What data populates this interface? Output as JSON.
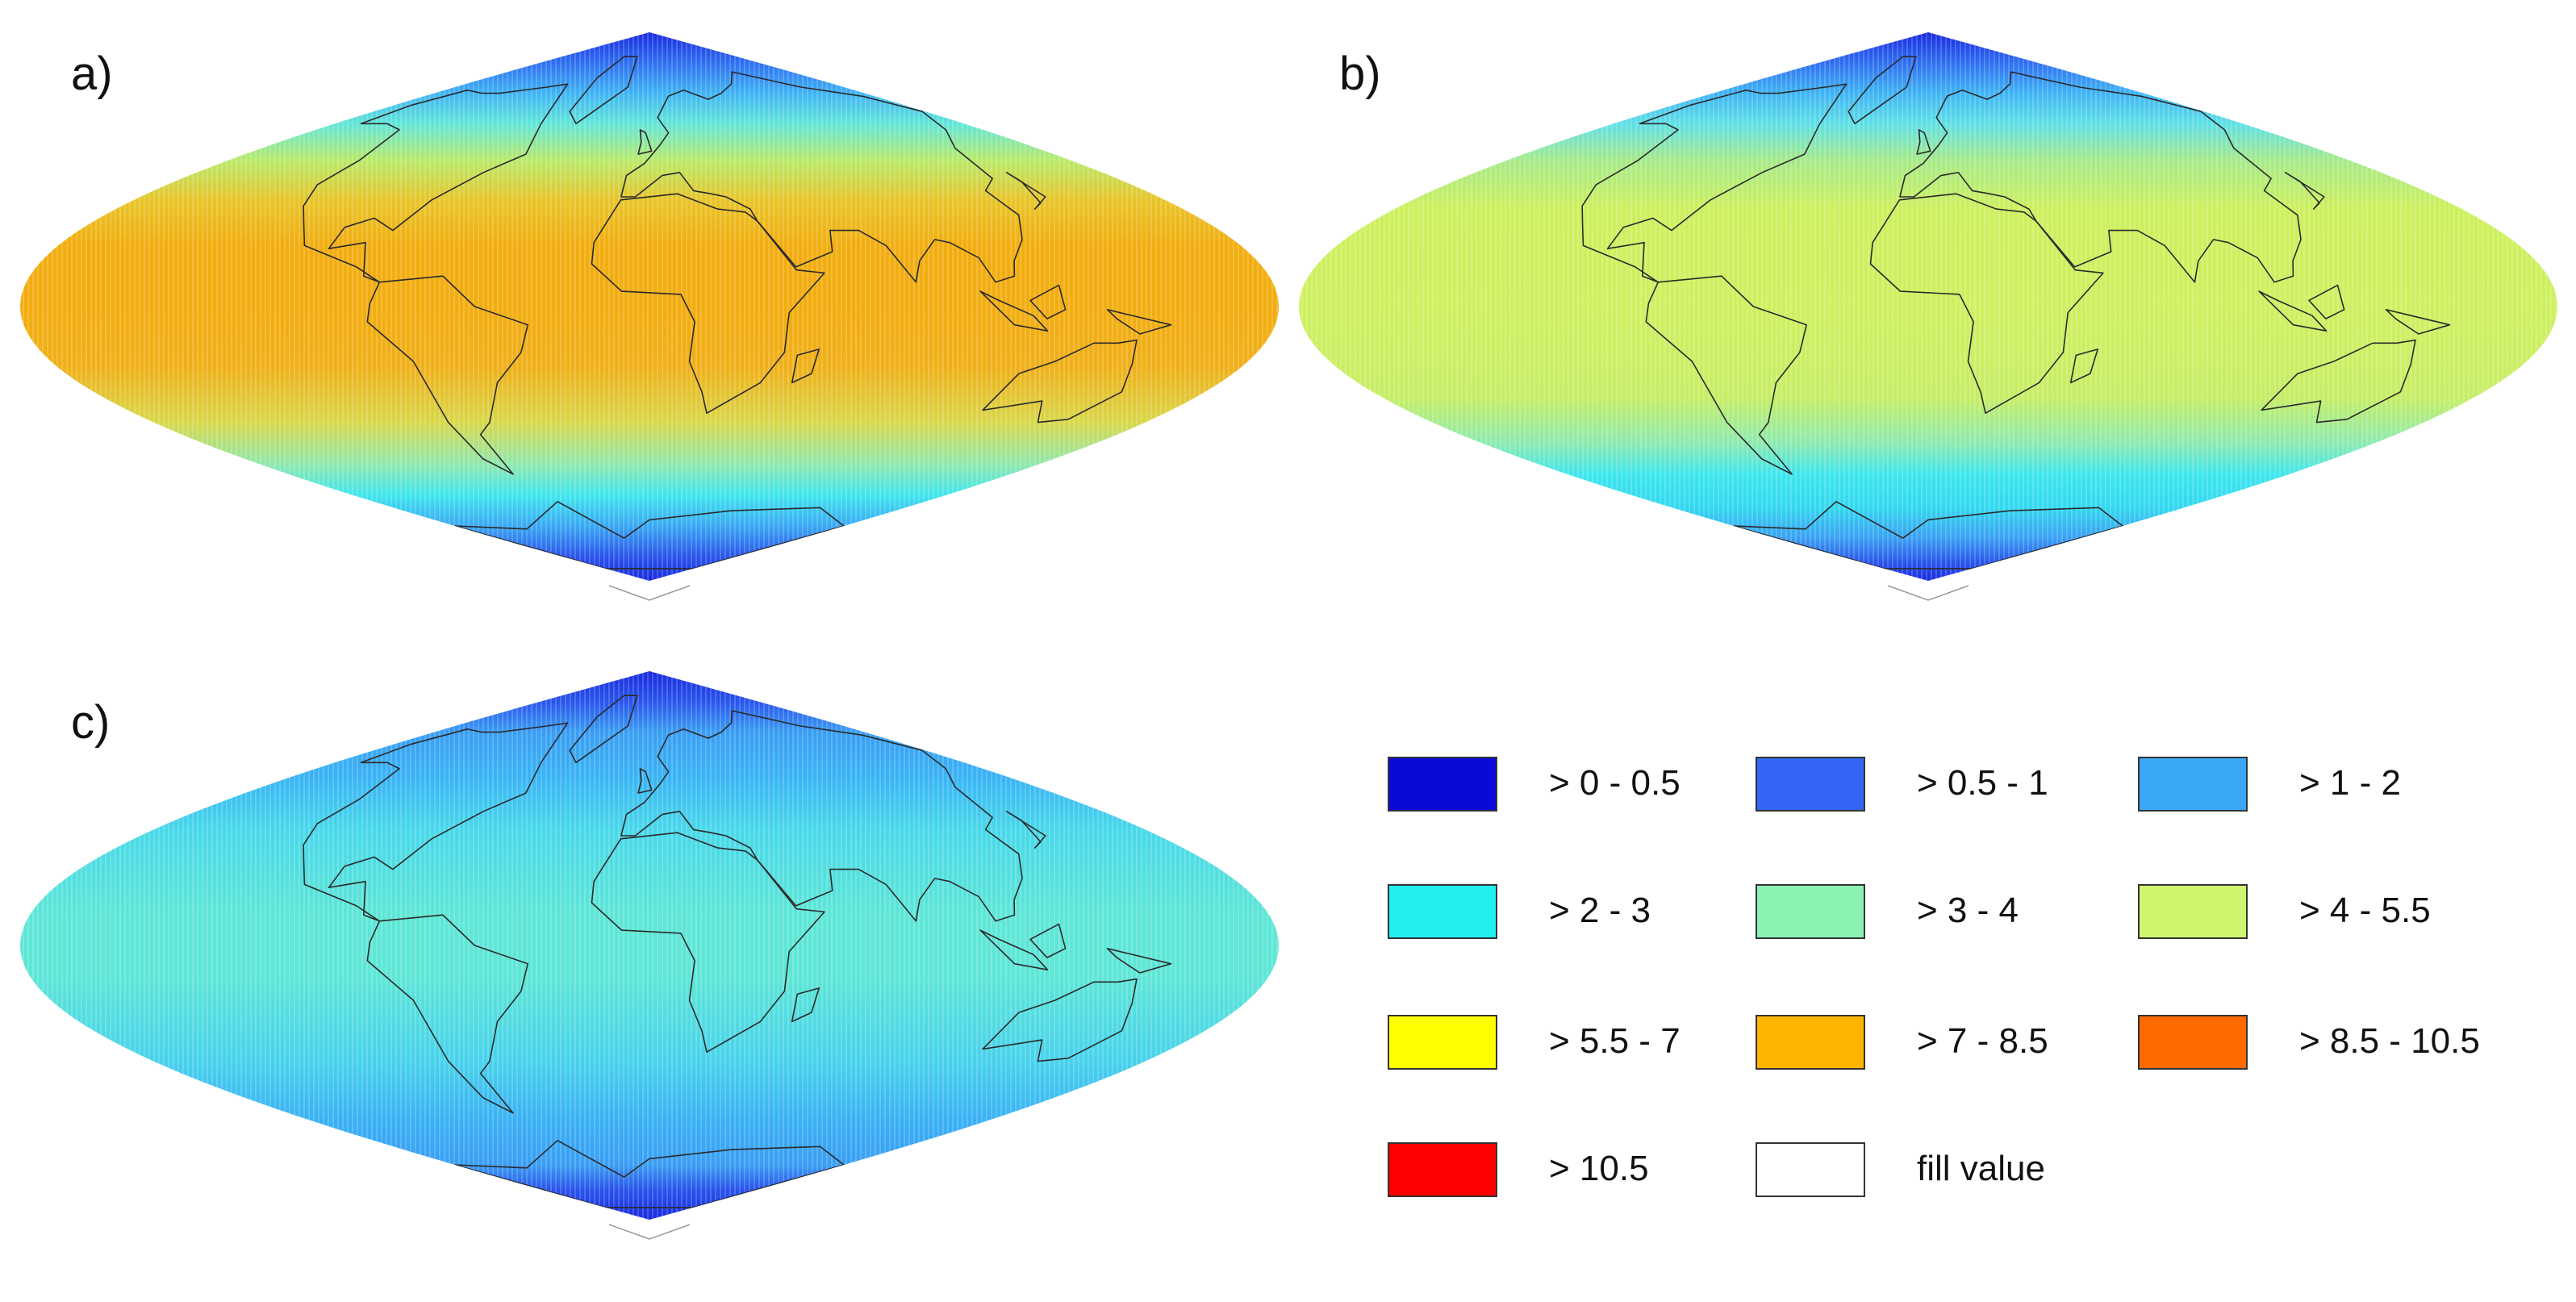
{
  "panels": [
    {
      "id": "a",
      "label": "a)",
      "bands": [
        {
          "lat": 90,
          "color": "#1a2be0"
        },
        {
          "lat": 80,
          "color": "#2f6ff2"
        },
        {
          "lat": 70,
          "color": "#3fb4f5"
        },
        {
          "lat": 60,
          "color": "#62e6d8"
        },
        {
          "lat": 48,
          "color": "#b8ea6a"
        },
        {
          "lat": 35,
          "color": "#e8c52a"
        },
        {
          "lat": 20,
          "color": "#f2ad10"
        },
        {
          "lat": 0,
          "color": "#f2ad10"
        },
        {
          "lat": -20,
          "color": "#f0b01a"
        },
        {
          "lat": -38,
          "color": "#d8d84a"
        },
        {
          "lat": -52,
          "color": "#8ee8b0"
        },
        {
          "lat": -62,
          "color": "#3ee6ee"
        },
        {
          "lat": -72,
          "color": "#3aa8f4"
        },
        {
          "lat": -82,
          "color": "#2a55ec"
        },
        {
          "lat": -90,
          "color": "#1a2be0"
        }
      ]
    },
    {
      "id": "b",
      "label": "b)",
      "bands": [
        {
          "lat": 90,
          "color": "#1a2be0"
        },
        {
          "lat": 80,
          "color": "#2f6ff2"
        },
        {
          "lat": 70,
          "color": "#3fb4f5"
        },
        {
          "lat": 60,
          "color": "#5fe0e6"
        },
        {
          "lat": 48,
          "color": "#a6ea8a"
        },
        {
          "lat": 32,
          "color": "#cdf05e"
        },
        {
          "lat": 0,
          "color": "#cff060"
        },
        {
          "lat": -30,
          "color": "#c6ee66"
        },
        {
          "lat": -45,
          "color": "#8ceab0"
        },
        {
          "lat": -55,
          "color": "#3ee6ee"
        },
        {
          "lat": -66,
          "color": "#33d8f0"
        },
        {
          "lat": -76,
          "color": "#3aa0f4"
        },
        {
          "lat": -84,
          "color": "#2a55ec"
        },
        {
          "lat": -90,
          "color": "#1a2be0"
        }
      ]
    },
    {
      "id": "c",
      "label": "c)",
      "bands": [
        {
          "lat": 90,
          "color": "#1a2be0"
        },
        {
          "lat": 80,
          "color": "#2a55ec"
        },
        {
          "lat": 70,
          "color": "#3a9ef4"
        },
        {
          "lat": 55,
          "color": "#3ab4f5"
        },
        {
          "lat": 38,
          "color": "#48d8ea"
        },
        {
          "lat": 10,
          "color": "#5ee6d6"
        },
        {
          "lat": -10,
          "color": "#5ee6d6"
        },
        {
          "lat": -38,
          "color": "#48d2ec"
        },
        {
          "lat": -58,
          "color": "#3ab0f5"
        },
        {
          "lat": -72,
          "color": "#3a9ef4"
        },
        {
          "lat": -80,
          "color": "#2a55ec"
        },
        {
          "lat": -90,
          "color": "#1a2be0"
        }
      ]
    }
  ],
  "legend": [
    {
      "label": "> 0 - 0.5",
      "color": "#0a0ad8"
    },
    {
      "label": "> 0.5 - 1",
      "color": "#3366f6"
    },
    {
      "label": "> 1 - 2",
      "color": "#3aa8f6"
    },
    {
      "label": "> 2 - 3",
      "color": "#22f0f0"
    },
    {
      "label": "> 3 - 4",
      "color": "#8cf2b4"
    },
    {
      "label": "> 4 - 5.5",
      "color": "#cdf56e"
    },
    {
      "label": "> 5.5 - 7",
      "color": "#ffff00"
    },
    {
      "label": "> 7 - 8.5",
      "color": "#ffb400"
    },
    {
      "label": "> 8.5 - 10.5",
      "color": "#ff6a00"
    },
    {
      "label": "> 10.5",
      "color": "#ff0000"
    },
    {
      "label": "fill value",
      "color": "#ffffff"
    }
  ]
}
